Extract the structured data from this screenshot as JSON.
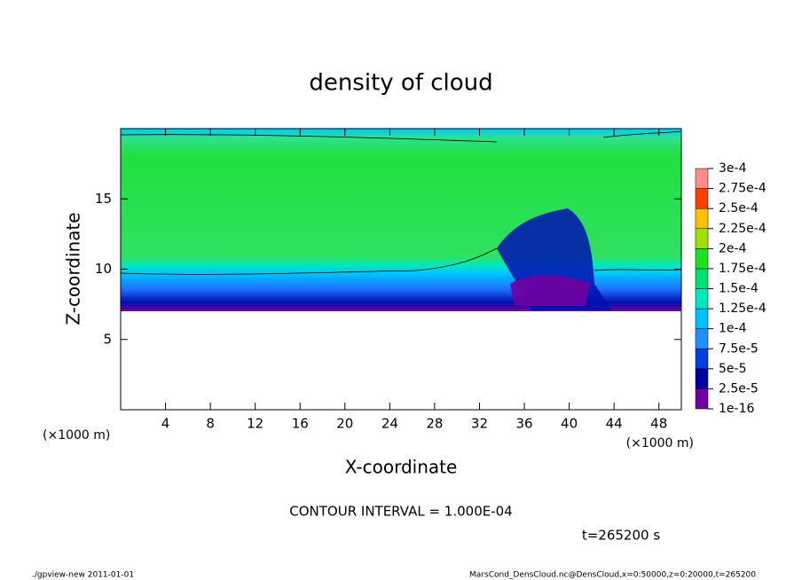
{
  "chart_data": {
    "type": "contour",
    "title": "density of cloud",
    "xlabel": "X-coordinate",
    "ylabel": "Z-coordinate",
    "x_unit_left": "(×1000 m)",
    "x_unit_right": "(×1000 m)",
    "xlim": [
      0,
      50
    ],
    "xticks": [
      4,
      8,
      12,
      16,
      20,
      24,
      28,
      32,
      36,
      40,
      44,
      48
    ],
    "ylim": [
      0,
      20
    ],
    "yticks": [
      5,
      10,
      15
    ],
    "levels": [
      {
        "value": 1e-16,
        "label": "1e-16"
      },
      {
        "value": 2.5e-05,
        "label": "2.5e-5"
      },
      {
        "value": 5e-05,
        "label": "5e-5"
      },
      {
        "value": 7.5e-05,
        "label": "7.5e-5"
      },
      {
        "value": 0.0001,
        "label": "1e-4"
      },
      {
        "value": 0.000125,
        "label": "1.25e-4"
      },
      {
        "value": 0.00015,
        "label": "1.5e-4"
      },
      {
        "value": 0.000175,
        "label": "1.75e-4"
      },
      {
        "value": 0.0002,
        "label": "2e-4"
      },
      {
        "value": 0.000225,
        "label": "2.25e-4"
      },
      {
        "value": 0.00025,
        "label": "2.5e-4"
      },
      {
        "value": 0.000275,
        "label": "2.75e-4"
      },
      {
        "value": 0.0003,
        "label": "3e-4"
      }
    ],
    "colors": [
      "#7000a0",
      "#0000a0",
      "#0040e0",
      "#1e90ff",
      "#00c0ff",
      "#00e8c0",
      "#00e070",
      "#20e020",
      "#a0e000",
      "#ffc000",
      "#ff4000",
      "#ff8c8c"
    ],
    "annotations": [
      "CONTOUR INTERVAL = 1.000E-04",
      "t=265200 s"
    ],
    "footer_left": "./gpview-new  2011-01-01",
    "footer_right": "MarsCond_DensCloud.nc@DensCloud,x=0:50000,z=0:20000,t=265200"
  }
}
